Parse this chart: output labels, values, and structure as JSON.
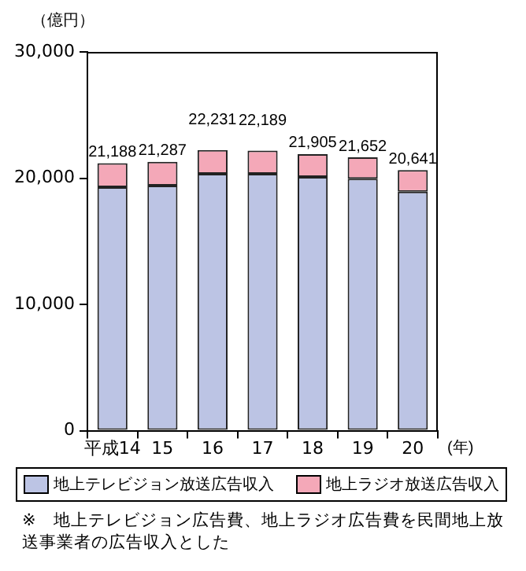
{
  "chart_data": {
    "type": "bar",
    "stacked": true,
    "ylabel": "（億円）",
    "xlabel": "(年)",
    "categories": [
      "平成14",
      "15",
      "16",
      "17",
      "18",
      "19",
      "20"
    ],
    "series": [
      {
        "name": "地上テレビジョン放送広告収入",
        "color": "#bcc4e4",
        "values": [
          19290,
          19410,
          20340,
          20340,
          20090,
          19960,
          18930
        ]
      },
      {
        "name": "地上ラジオ放送広告収入",
        "color": "#f4a8b8",
        "values": [
          1898,
          1877,
          1891,
          1849,
          1815,
          1692,
          1711
        ]
      }
    ],
    "totals": [
      "21,188",
      "21,287",
      "22,231",
      "22,189",
      "21,905",
      "21,652",
      "20,641"
    ],
    "ylim": [
      0,
      30000
    ],
    "yticks": [
      {
        "value": 0,
        "label": "0"
      },
      {
        "value": 10000,
        "label": "10,000"
      },
      {
        "value": 20000,
        "label": "20,000"
      },
      {
        "value": 30000,
        "label": "30,000"
      }
    ],
    "grid": false,
    "legend": "bottom",
    "annotations": [
      "※　地上テレビジョン広告費、地上ラジオ広告費を民間地上放送事業者の広告収入とした"
    ]
  }
}
